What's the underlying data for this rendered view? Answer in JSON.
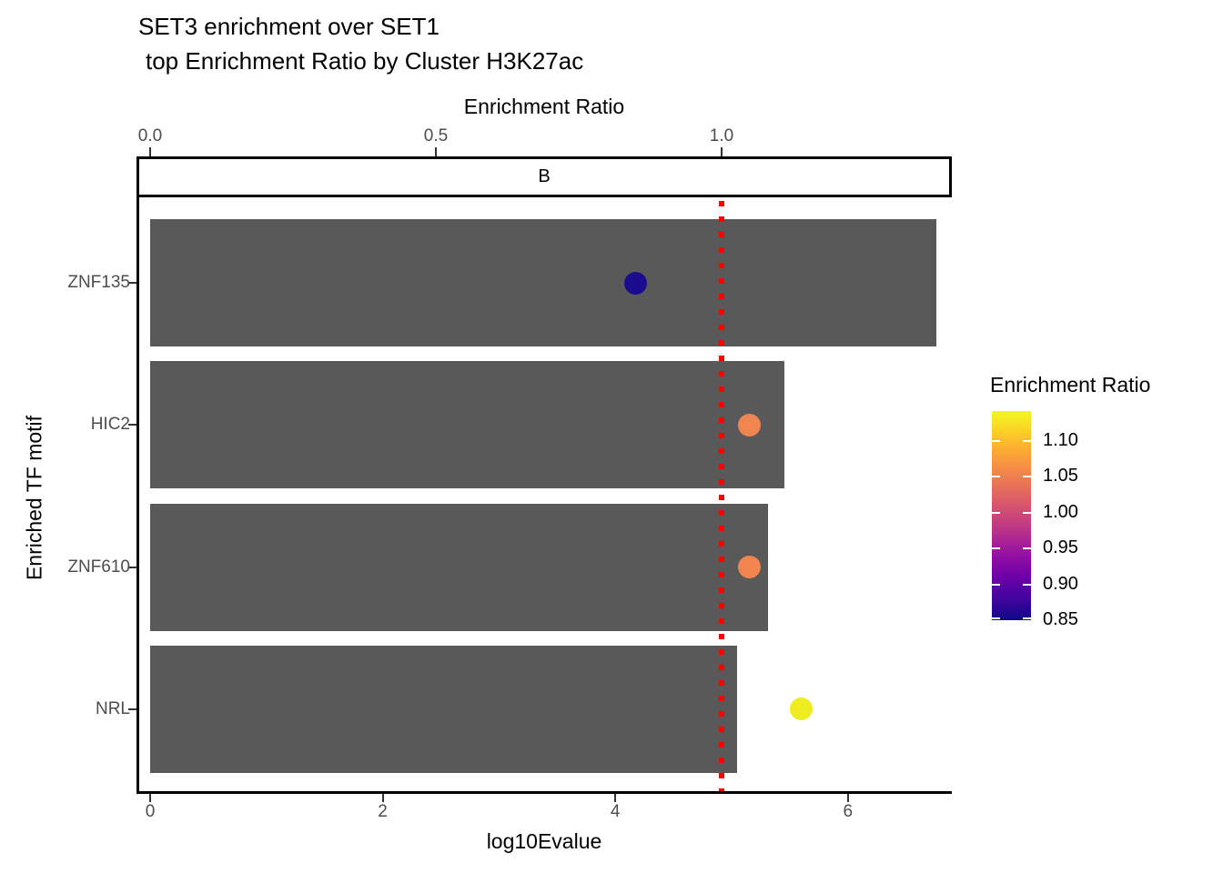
{
  "title": {
    "line1": "SET3 enrichment over SET1",
    "line2": "top Enrichment Ratio by Cluster H3K27ac"
  },
  "facet_label": "B",
  "axes": {
    "top": {
      "title": "Enrichment Ratio",
      "ticks": [
        {
          "label": "0.0",
          "value": 0.0
        },
        {
          "label": "0.5",
          "value": 0.5
        },
        {
          "label": "1.0",
          "value": 1.0
        }
      ]
    },
    "bottom": {
      "title": "log10Evalue",
      "ticks": [
        {
          "label": "0",
          "value": 0
        },
        {
          "label": "2",
          "value": 2
        },
        {
          "label": "4",
          "value": 4
        },
        {
          "label": "6",
          "value": 6
        }
      ]
    },
    "left": {
      "title": "Enriched TF motif"
    }
  },
  "legend": {
    "title": "Enrichment Ratio",
    "ticks": [
      {
        "label": "1.10",
        "value": 1.1
      },
      {
        "label": "1.05",
        "value": 1.05
      },
      {
        "label": "1.00",
        "value": 1.0
      },
      {
        "label": "0.95",
        "value": 0.95
      },
      {
        "label": "0.90",
        "value": 0.9
      },
      {
        "label": "0.85",
        "value": 0.85
      }
    ],
    "range": [
      0.85,
      1.142
    ],
    "gradient_stops_top_to_bottom": [
      "#F0F921",
      "#FCCE25",
      "#FCA636",
      "#F1834C",
      "#E16462",
      "#CC4778",
      "#B12A90",
      "#8F0DA4",
      "#6A00A8",
      "#41049D",
      "#0D0887"
    ]
  },
  "colors": {
    "bar": "#595959",
    "axis_text": "#4D4D4D",
    "axis_line": "#000000",
    "reference_line": "#FF0000",
    "strip_border": "#000000",
    "strip_background": "#FFFFFF",
    "background": "#FFFFFF"
  },
  "chart_data": {
    "type": "bar",
    "orientation": "horizontal",
    "title": "SET3 enrichment over SET1\n top Enrichment Ratio by Cluster H3K27ac",
    "xlabel": "log10Evalue",
    "ylabel": "Enriched TF motif",
    "secondary_xlabel": "Enrichment Ratio",
    "facet_label": "B",
    "categories": [
      "ZNF135",
      "HIC2",
      "ZNF610",
      "NRL"
    ],
    "series": [
      {
        "name": "log10Evalue",
        "type": "bar",
        "values": [
          6.76,
          5.45,
          5.31,
          5.05
        ]
      },
      {
        "name": "Enrichment Ratio",
        "type": "point",
        "values": [
          0.85,
          1.048,
          1.049,
          1.14
        ],
        "colors": [
          "#1B0C8F",
          "#F0854F",
          "#F0854F",
          "#EFEC1F"
        ]
      }
    ],
    "x_range": [
      0,
      6.9
    ],
    "secondary_x_range": [
      0,
      1.4
    ],
    "reference_line": {
      "value": 1.0,
      "axis": "secondary_x",
      "color": "#FF0000",
      "style": "dotted"
    },
    "legend_position": "right",
    "grid": false
  }
}
